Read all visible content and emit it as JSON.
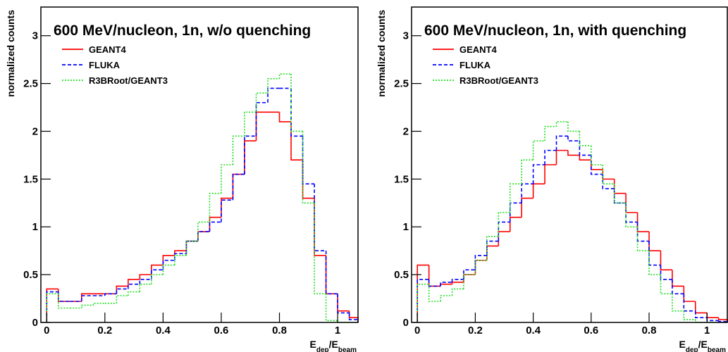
{
  "chart_data": [
    {
      "type": "histogram",
      "title": "600 MeV/nucleon, 1n, w/o quenching",
      "x_label": [
        "E",
        "dep",
        "/E",
        "beam"
      ],
      "y_label": "normalized counts",
      "bins": [
        0,
        0.04,
        0.08,
        0.12,
        0.16,
        0.2,
        0.24,
        0.28,
        0.32,
        0.36,
        0.4,
        0.44,
        0.48,
        0.52,
        0.56,
        0.6,
        0.64,
        0.68,
        0.72,
        0.76,
        0.8,
        0.84,
        0.88,
        0.92,
        0.96,
        1,
        1.04,
        1.08
      ],
      "xlim": [
        -0.02,
        1.07
      ],
      "ylim": [
        0,
        3.3
      ],
      "xticks": [
        0,
        0.2,
        0.4,
        0.6,
        0.8,
        1
      ],
      "yticks": [
        0,
        0.5,
        1,
        1.5,
        2,
        2.5,
        3
      ],
      "series": [
        {
          "name": "GEANT4",
          "color": "#ff0000",
          "dash": "solid",
          "values": [
            0.35,
            0.22,
            0.22,
            0.3,
            0.3,
            0.3,
            0.38,
            0.45,
            0.5,
            0.6,
            0.7,
            0.75,
            0.85,
            0.95,
            1.1,
            1.3,
            1.55,
            1.9,
            2.2,
            2.2,
            2.1,
            1.7,
            1.3,
            0.7,
            0.3,
            0.12,
            0.05
          ]
        },
        {
          "name": "FLUKA",
          "color": "#0000ff",
          "dash": "dashed",
          "values": [
            0.32,
            0.22,
            0.22,
            0.28,
            0.28,
            0.3,
            0.35,
            0.4,
            0.45,
            0.55,
            0.65,
            0.72,
            0.85,
            0.95,
            1.05,
            1.28,
            1.55,
            1.95,
            2.3,
            2.45,
            2.45,
            1.95,
            1.45,
            0.75,
            0.3,
            0.1,
            0.03
          ]
        },
        {
          "name": "R3BRoot/GEANT3",
          "color": "#22dd22",
          "dash": "dotted",
          "values": [
            0.3,
            0.15,
            0.15,
            0.18,
            0.2,
            0.2,
            0.28,
            0.32,
            0.4,
            0.5,
            0.6,
            0.7,
            0.85,
            1.05,
            1.35,
            1.65,
            1.95,
            2.2,
            2.4,
            2.55,
            2.6,
            2.0,
            1.25,
            0.3,
            0.02,
            0,
            0
          ]
        }
      ]
    },
    {
      "type": "histogram",
      "title": "600 MeV/nucleon, 1n, with quenching",
      "x_label": [
        "E",
        "dep",
        "/E",
        "beam"
      ],
      "y_label": "normalized counts",
      "bins": [
        0,
        0.04,
        0.08,
        0.12,
        0.16,
        0.2,
        0.24,
        0.28,
        0.32,
        0.36,
        0.4,
        0.44,
        0.48,
        0.52,
        0.56,
        0.6,
        0.64,
        0.68,
        0.72,
        0.76,
        0.8,
        0.84,
        0.88,
        0.92,
        0.96,
        1,
        1.04,
        1.08
      ],
      "xlim": [
        -0.02,
        1.07
      ],
      "ylim": [
        0,
        3.3
      ],
      "xticks": [
        0,
        0.2,
        0.4,
        0.6,
        0.8,
        1
      ],
      "yticks": [
        0,
        0.5,
        1,
        1.5,
        2,
        2.5,
        3
      ],
      "series": [
        {
          "name": "GEANT4",
          "color": "#ff0000",
          "dash": "solid",
          "values": [
            0.6,
            0.38,
            0.4,
            0.42,
            0.5,
            0.65,
            0.8,
            0.95,
            1.1,
            1.3,
            1.45,
            1.65,
            1.8,
            1.75,
            1.7,
            1.6,
            1.5,
            1.35,
            1.15,
            0.95,
            0.75,
            0.55,
            0.38,
            0.22,
            0.1,
            0.05,
            0.03
          ]
        },
        {
          "name": "FLUKA",
          "color": "#0000ff",
          "dash": "dashed",
          "values": [
            0.45,
            0.38,
            0.42,
            0.45,
            0.55,
            0.7,
            0.85,
            1.05,
            1.25,
            1.45,
            1.65,
            1.8,
            1.95,
            1.9,
            1.75,
            1.55,
            1.4,
            1.25,
            1.05,
            0.85,
            0.6,
            0.45,
            0.3,
            0.12,
            0.05,
            0.02,
            0.01
          ]
        },
        {
          "name": "R3BRoot/GEANT3",
          "color": "#22dd22",
          "dash": "dotted",
          "values": [
            0.4,
            0.22,
            0.28,
            0.35,
            0.5,
            0.65,
            0.9,
            1.15,
            1.45,
            1.7,
            1.9,
            2.05,
            2.1,
            2.0,
            1.85,
            1.65,
            1.45,
            1.25,
            1.0,
            0.75,
            0.5,
            0.3,
            0.12,
            0.03,
            0,
            0,
            0
          ]
        }
      ]
    }
  ]
}
